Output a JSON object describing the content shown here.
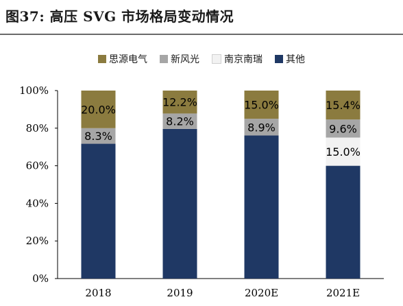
{
  "figure_title": "图37:  高压 SVG 市场格局变动情况",
  "chart_data": {
    "type": "bar",
    "stacked": true,
    "categories": [
      "2018",
      "2019",
      "2020E",
      "2021E"
    ],
    "series": [
      {
        "name": "其他",
        "values": [
          71.7,
          79.6,
          76.1,
          60.0
        ],
        "color": "#1f3864",
        "labels": [
          "",
          "",
          "",
          ""
        ]
      },
      {
        "name": "南京南瑞",
        "values": [
          0,
          0,
          0,
          15.0
        ],
        "color": "#f2f2f2",
        "labels": [
          "",
          "",
          "",
          "15.0%"
        ]
      },
      {
        "name": "新风光",
        "values": [
          8.3,
          8.2,
          8.9,
          9.6
        ],
        "color": "#a6a6a6",
        "labels": [
          "8.3%",
          "8.2%",
          "8.9%",
          "9.6%"
        ]
      },
      {
        "name": "思源电气",
        "values": [
          20.0,
          12.2,
          15.0,
          15.4
        ],
        "color": "#8b7b3f",
        "labels": [
          "20.0%",
          "12.2%",
          "15.0%",
          "15.4%"
        ]
      }
    ],
    "legend_order": [
      "思源电气",
      "新风光",
      "南京南瑞",
      "其他"
    ],
    "ylim": [
      0,
      100
    ],
    "yticks": [
      "0%",
      "20%",
      "40%",
      "60%",
      "80%",
      "100%"
    ],
    "ytick_values": [
      0,
      20,
      40,
      60,
      80,
      100
    ],
    "grid": false,
    "legend_position": "top"
  }
}
